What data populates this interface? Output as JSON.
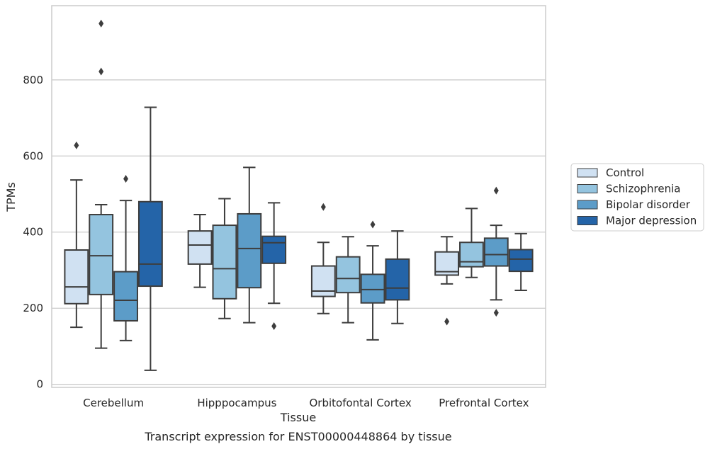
{
  "caption": "Transcript expression for ENST00000448864 by tissue",
  "chart_data": {
    "type": "boxplot",
    "xlabel": "Tissue",
    "ylabel": "TPMs",
    "ylim": [
      -8,
      995
    ],
    "yticks": [
      0,
      200,
      400,
      600,
      800
    ],
    "ytick_labels": [
      "0",
      "200",
      "400",
      "600",
      "800"
    ],
    "grid": "horizontal",
    "legend_position": "right",
    "categories": [
      "Cerebellum",
      "Hipppocampus",
      "Orbitofontal Cortex",
      "Prefrontal Cortex"
    ],
    "series": [
      {
        "name": "Control",
        "color": "#d0e1f2",
        "boxes": [
          {
            "whislo": 150,
            "q1": 212,
            "med": 256,
            "q3": 353,
            "whishi": 537,
            "fliers": [
              628
            ]
          },
          {
            "whislo": 255,
            "q1": 316,
            "med": 366,
            "q3": 403,
            "whishi": 446,
            "fliers": []
          },
          {
            "whislo": 186,
            "q1": 231,
            "med": 245,
            "q3": 311,
            "whishi": 373,
            "fliers": [
              466
            ]
          },
          {
            "whislo": 264,
            "q1": 287,
            "med": 296,
            "q3": 348,
            "whishi": 388,
            "fliers": [
              165
            ]
          }
        ]
      },
      {
        "name": "Schizophrenia",
        "color": "#94c4df",
        "boxes": [
          {
            "whislo": 95,
            "q1": 236,
            "med": 338,
            "q3": 446,
            "whishi": 472,
            "fliers": [
              822,
              948
            ]
          },
          {
            "whislo": 173,
            "q1": 225,
            "med": 304,
            "q3": 418,
            "whishi": 488,
            "fliers": []
          },
          {
            "whislo": 162,
            "q1": 241,
            "med": 278,
            "q3": 335,
            "whishi": 388,
            "fliers": []
          },
          {
            "whislo": 281,
            "q1": 309,
            "med": 322,
            "q3": 373,
            "whishi": 462,
            "fliers": []
          }
        ]
      },
      {
        "name": "Bipolar disorder",
        "color": "#5c9cc8",
        "boxes": [
          {
            "whislo": 115,
            "q1": 167,
            "med": 221,
            "q3": 296,
            "whishi": 483,
            "fliers": [
              540
            ]
          },
          {
            "whislo": 162,
            "q1": 254,
            "med": 357,
            "q3": 448,
            "whishi": 570,
            "fliers": []
          },
          {
            "whislo": 117,
            "q1": 214,
            "med": 249,
            "q3": 289,
            "whishi": 364,
            "fliers": [
              420
            ]
          },
          {
            "whislo": 222,
            "q1": 311,
            "med": 341,
            "q3": 384,
            "whishi": 418,
            "fliers": [
              188,
              509
            ]
          }
        ]
      },
      {
        "name": "Major depression",
        "color": "#2464a8",
        "boxes": [
          {
            "whislo": 37,
            "q1": 258,
            "med": 316,
            "q3": 480,
            "whishi": 728,
            "fliers": []
          },
          {
            "whislo": 213,
            "q1": 318,
            "med": 372,
            "q3": 389,
            "whishi": 477,
            "fliers": [
              153
            ]
          },
          {
            "whislo": 160,
            "q1": 222,
            "med": 253,
            "q3": 329,
            "whishi": 403,
            "fliers": []
          },
          {
            "whislo": 247,
            "q1": 297,
            "med": 329,
            "q3": 354,
            "whishi": 396,
            "fliers": []
          }
        ]
      }
    ]
  }
}
